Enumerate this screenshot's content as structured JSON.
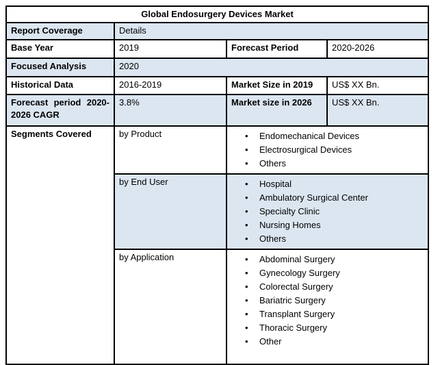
{
  "document": {
    "title": "Global Endosurgery Devices Market",
    "colors": {
      "accent_underline": "#95b3d7",
      "row_highlight": "#dce6f1",
      "border": "#000000",
      "text": "#000000",
      "background": "#ffffff"
    },
    "fields": {
      "report_coverage": {
        "label": "Report Coverage",
        "value": "Details"
      },
      "base_year": {
        "label": "Base Year",
        "value": "2019"
      },
      "forecast_period": {
        "label": "Forecast Period",
        "value": "2020-2026"
      },
      "focused_analysis": {
        "label": "Focused Analysis",
        "value": "2020"
      },
      "historical_data": {
        "label": "Historical Data",
        "value": "2016-2019"
      },
      "market_size_2019": {
        "label": "Market Size in 2019",
        "value": "US$ XX Bn."
      },
      "forecast_cagr": {
        "label": "Forecast period 2020-2026 CAGR",
        "value": "3.8%"
      },
      "market_size_2026": {
        "label": "Market size in 2026",
        "value": "US$ XX Bn."
      },
      "segments_covered": {
        "label": "Segments Covered"
      }
    },
    "segments": [
      {
        "label": "by Product",
        "items": [
          "Endomechanical Devices",
          "Electrosurgical Devices",
          "Others"
        ]
      },
      {
        "label": "by End User",
        "items": [
          "Hospital",
          "Ambulatory Surgical Center",
          "Specialty Clinic",
          "Nursing Homes",
          "Others"
        ]
      },
      {
        "label": "by Application",
        "items": [
          "Abdominal Surgery",
          "Gynecology Surgery",
          "Colorectal Surgery",
          "Bariatric Surgery",
          "Transplant Surgery",
          "Thoracic Surgery",
          "Other"
        ]
      }
    ]
  }
}
